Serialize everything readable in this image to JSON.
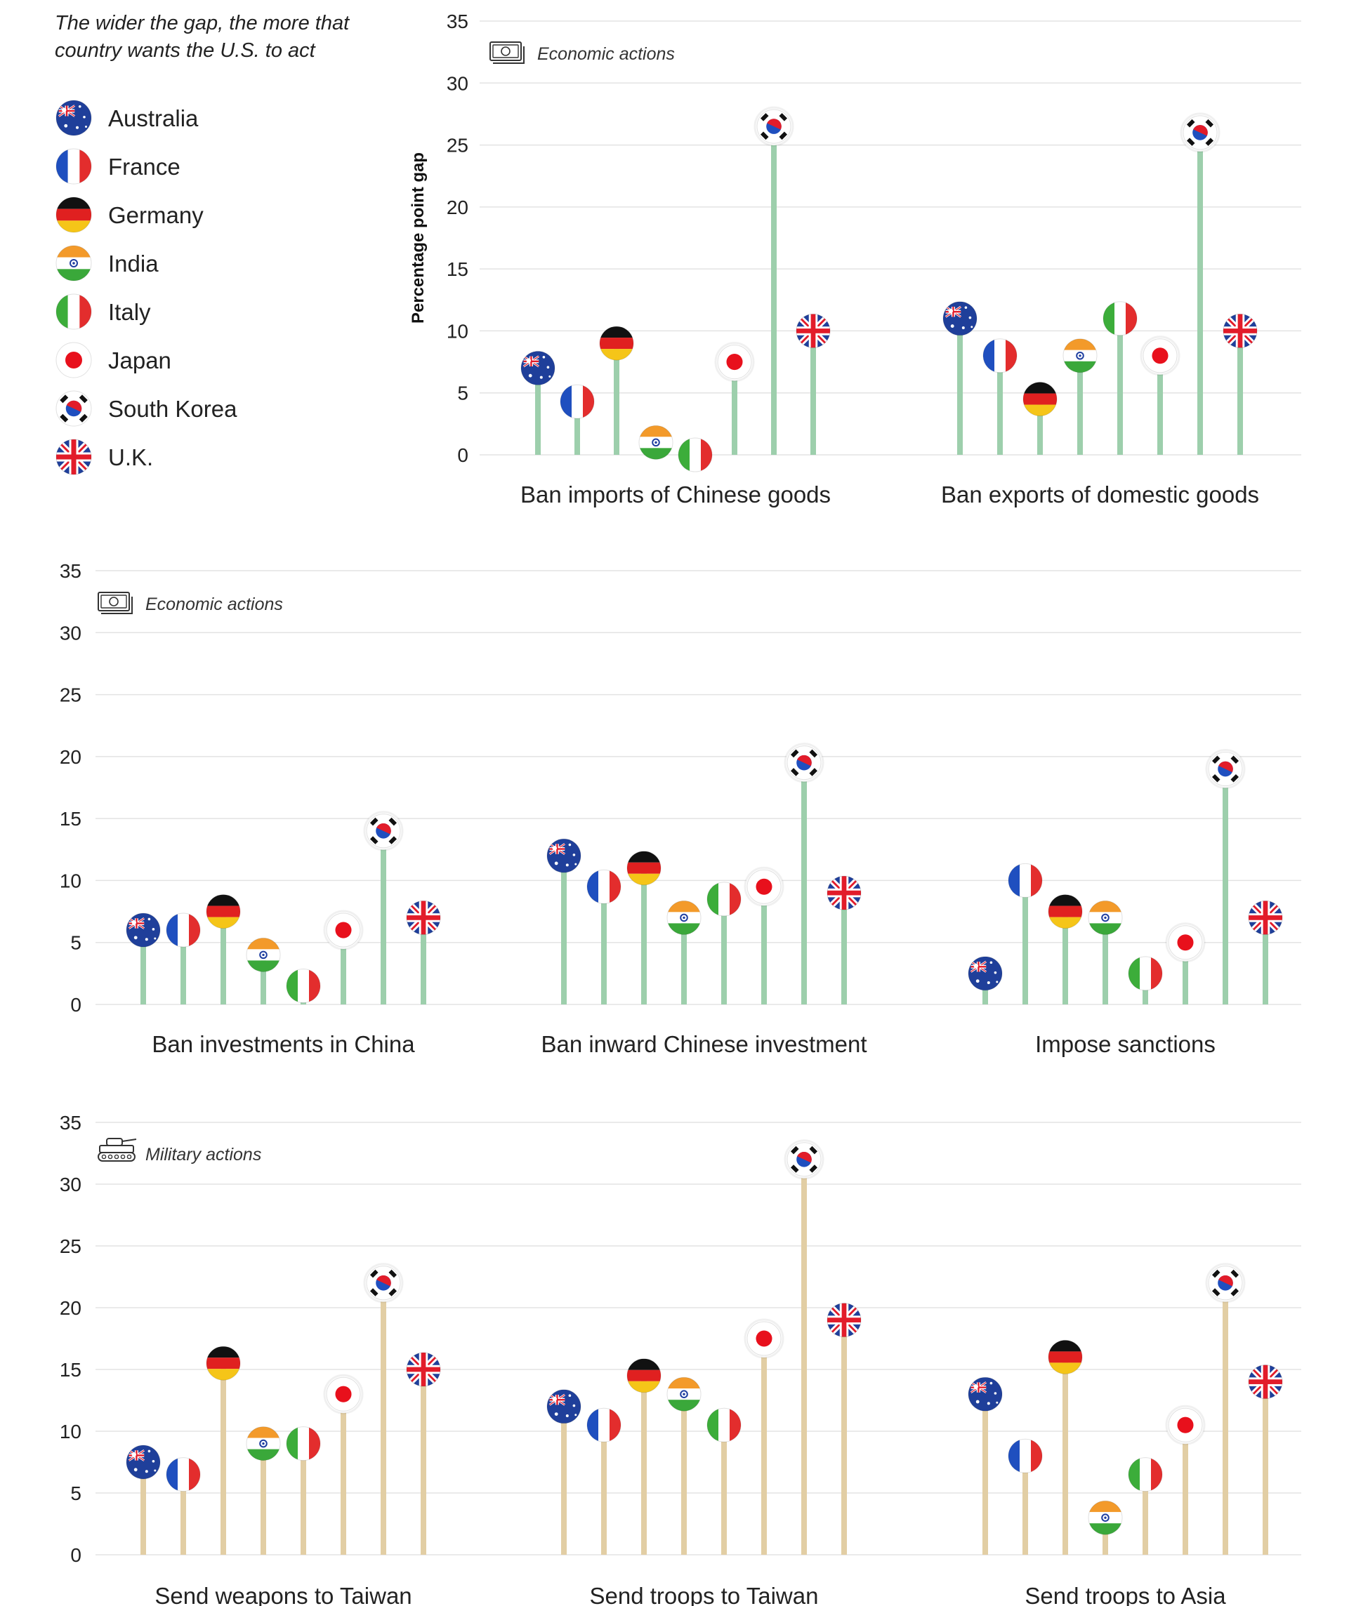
{
  "legend": {
    "title_line1": "The wider the gap, the more that",
    "title_line2": "country wants the U.S. to act",
    "countries": [
      {
        "key": "australia",
        "label": "Australia",
        "icon": "australia-flag-icon"
      },
      {
        "key": "france",
        "label": "France",
        "icon": "france-flag-icon"
      },
      {
        "key": "germany",
        "label": "Germany",
        "icon": "germany-flag-icon"
      },
      {
        "key": "india",
        "label": "India",
        "icon": "india-flag-icon"
      },
      {
        "key": "italy",
        "label": "Italy",
        "icon": "italy-flag-icon"
      },
      {
        "key": "japan",
        "label": "Japan",
        "icon": "japan-flag-icon"
      },
      {
        "key": "south_korea",
        "label": "South Korea",
        "icon": "south-korea-flag-icon"
      },
      {
        "key": "uk",
        "label": "U.K.",
        "icon": "uk-flag-icon"
      }
    ]
  },
  "colors": {
    "economic_stem": "#9dcfac",
    "military_stem": "#e2cea4",
    "grid": "#e3e3e3",
    "text": "#222222"
  },
  "chart_data": [
    {
      "type": "lollipop",
      "section": "Economic actions",
      "section_icon": "money-icon",
      "ylabel": "Percentage point gap",
      "ylim": [
        0,
        35
      ],
      "yticks": [
        0,
        5,
        10,
        15,
        20,
        25,
        30,
        35
      ],
      "grid": true,
      "series_order": [
        "australia",
        "france",
        "germany",
        "india",
        "italy",
        "japan",
        "south_korea",
        "uk"
      ],
      "categories": [
        "Ban imports of Chinese goods",
        "Ban exports of domestic goods"
      ],
      "values": [
        [
          7,
          4.3,
          9,
          1,
          0,
          7.5,
          26.5,
          10
        ],
        [
          11,
          8,
          4.5,
          8,
          11,
          8,
          26,
          10
        ]
      ]
    },
    {
      "type": "lollipop",
      "section": "Economic actions",
      "section_icon": "money-icon",
      "ylim": [
        0,
        35
      ],
      "yticks": [
        0,
        5,
        10,
        15,
        20,
        25,
        30,
        35
      ],
      "grid": true,
      "series_order": [
        "australia",
        "france",
        "germany",
        "india",
        "italy",
        "japan",
        "south_korea",
        "uk"
      ],
      "categories": [
        "Ban investments in China",
        "Ban inward Chinese investment",
        "Impose sanctions"
      ],
      "values": [
        [
          6,
          6,
          7.5,
          4,
          1.5,
          6,
          14,
          7
        ],
        [
          12,
          9.5,
          11,
          7,
          8.5,
          9.5,
          19.5,
          9
        ],
        [
          2.5,
          10,
          7.5,
          7,
          2.5,
          5,
          19,
          7
        ]
      ]
    },
    {
      "type": "lollipop",
      "section": "Military actions",
      "section_icon": "tank-icon",
      "ylim": [
        0,
        35
      ],
      "yticks": [
        0,
        5,
        10,
        15,
        20,
        25,
        30,
        35
      ],
      "grid": true,
      "series_order": [
        "australia",
        "france",
        "germany",
        "india",
        "italy",
        "japan",
        "south_korea",
        "uk"
      ],
      "categories": [
        "Send weapons to Taiwan",
        "Send troops to Taiwan",
        "Send troops to Asia"
      ],
      "values": [
        [
          7.5,
          6.5,
          15.5,
          9,
          9,
          13,
          22,
          15
        ],
        [
          12,
          10.5,
          14.5,
          13,
          10.5,
          17.5,
          32,
          19
        ],
        [
          13,
          8,
          16,
          3,
          6.5,
          10.5,
          22,
          14
        ]
      ]
    }
  ]
}
